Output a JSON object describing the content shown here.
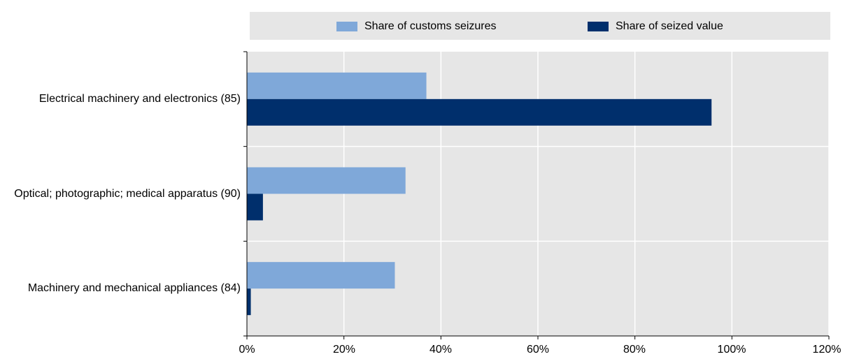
{
  "chart_data": {
    "type": "bar",
    "orientation": "horizontal",
    "categories": [
      "Electrical machinery and electronics (85)",
      "Optical; photographic; medical apparatus (90)",
      "Machinery and mechanical appliances (84)"
    ],
    "series": [
      {
        "name": "Share of customs seizures",
        "values": [
          37,
          32.7,
          30.5
        ],
        "color": "#7fa8d9"
      },
      {
        "name": "Share of seized value",
        "values": [
          95.8,
          3.3,
          0.8
        ],
        "color": "#002f6c"
      }
    ],
    "xlim": [
      0,
      120
    ],
    "xticks": [
      "0%",
      "20%",
      "40%",
      "60%",
      "80%",
      "100%",
      "120%"
    ],
    "grid": true,
    "legend_position": "top"
  }
}
